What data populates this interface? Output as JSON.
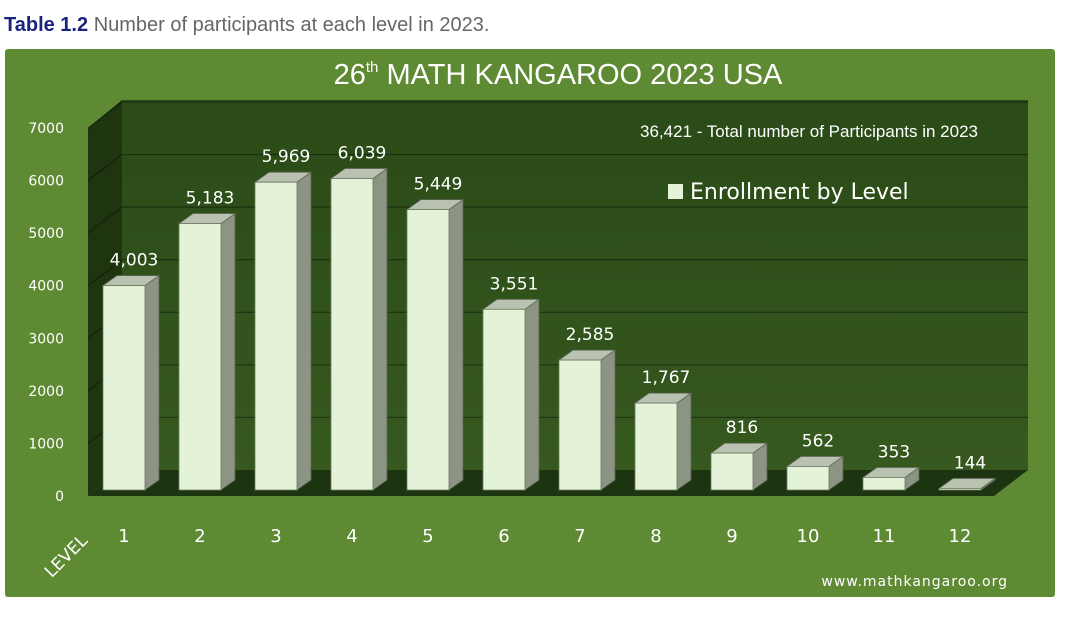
{
  "caption": {
    "label": "Table 1.2",
    "text": "Number of participants at each level in 2023."
  },
  "chart_data": {
    "type": "bar",
    "title_pre": "26",
    "title_sup": "th",
    "title_post": " MATH KANGAROO 2023 USA",
    "annotation": "36,421 - Total number of Participants in 2023",
    "xlabel": "LEVEL",
    "legend": {
      "label": "Enrollment by Level",
      "position": "top-right"
    },
    "watermark": "www.mathkangaroo.org",
    "categories": [
      "1",
      "2",
      "3",
      "4",
      "5",
      "6",
      "7",
      "8",
      "9",
      "10",
      "11",
      "12"
    ],
    "values": [
      4003,
      5183,
      5969,
      6039,
      5449,
      3551,
      2585,
      1767,
      816,
      562,
      353,
      144
    ],
    "data_labels": [
      "4,003",
      "5,183",
      "5,969",
      "6,039",
      "5,449",
      "3,551",
      "2,585",
      "1,767",
      "816",
      "562",
      "353",
      "144"
    ],
    "yticks": [
      "0",
      "1000",
      "2000",
      "3000",
      "4000",
      "5000",
      "6000",
      "7000"
    ],
    "ylim": [
      0,
      7000
    ],
    "grid": true,
    "colors": {
      "panel": "#5f8a34",
      "plot": "#2b4a18",
      "bar_front": "#e4f2d8",
      "bar_side": "#8c9584",
      "bar_top": "#b9c2b0",
      "text_light": "#ffffff"
    }
  }
}
